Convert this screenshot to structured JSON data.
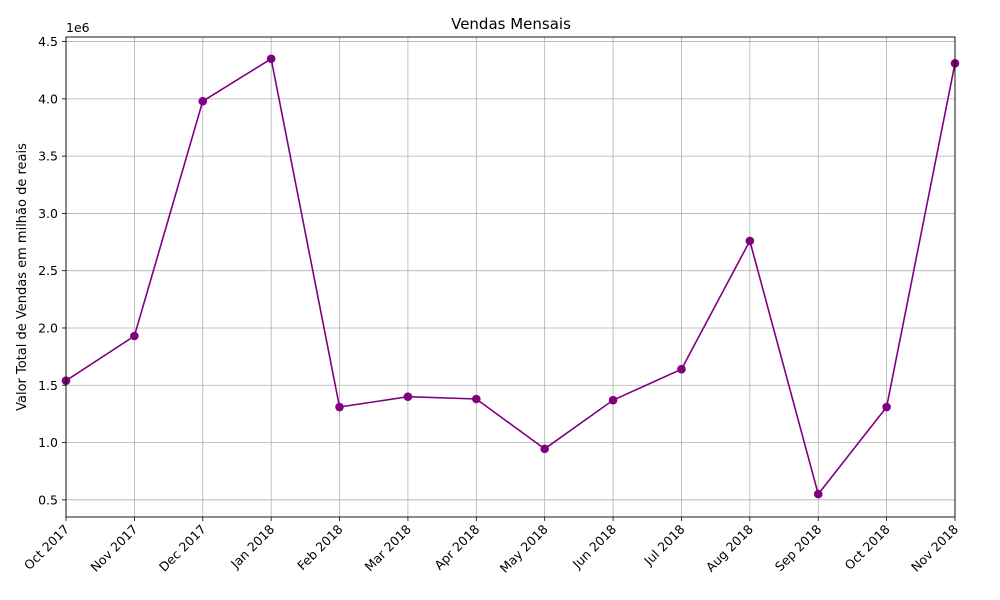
{
  "chart_data": {
    "type": "line",
    "title": "Vendas Mensais",
    "xlabel": "",
    "ylabel": "Valor Total de Vendas em milhão de reais",
    "y_offset_label": "1e6",
    "categories": [
      "Oct 2017",
      "Nov 2017",
      "Dec 2017",
      "Jan 2018",
      "Feb 2018",
      "Mar 2018",
      "Apr 2018",
      "May 2018",
      "Jun 2018",
      "Jul 2018",
      "Aug 2018",
      "Sep 2018",
      "Oct 2018",
      "Nov 2018"
    ],
    "series": [
      {
        "values": [
          1540000,
          1930000,
          3980000,
          4350000,
          1310000,
          1400000,
          1380000,
          945000,
          1370000,
          1640000,
          2760000,
          550000,
          1310000,
          4310000
        ],
        "color": "#800080",
        "marker": "circle"
      }
    ],
    "ylim": [
      350000,
      4540000
    ],
    "yticks": [
      500000,
      1000000,
      1500000,
      2000000,
      2500000,
      3000000,
      3500000,
      4000000,
      4500000
    ],
    "ytick_labels": [
      "0.5",
      "1.0",
      "1.5",
      "2.0",
      "2.5",
      "3.0",
      "3.5",
      "4.0",
      "4.5"
    ],
    "grid": true,
    "legend": "none"
  }
}
